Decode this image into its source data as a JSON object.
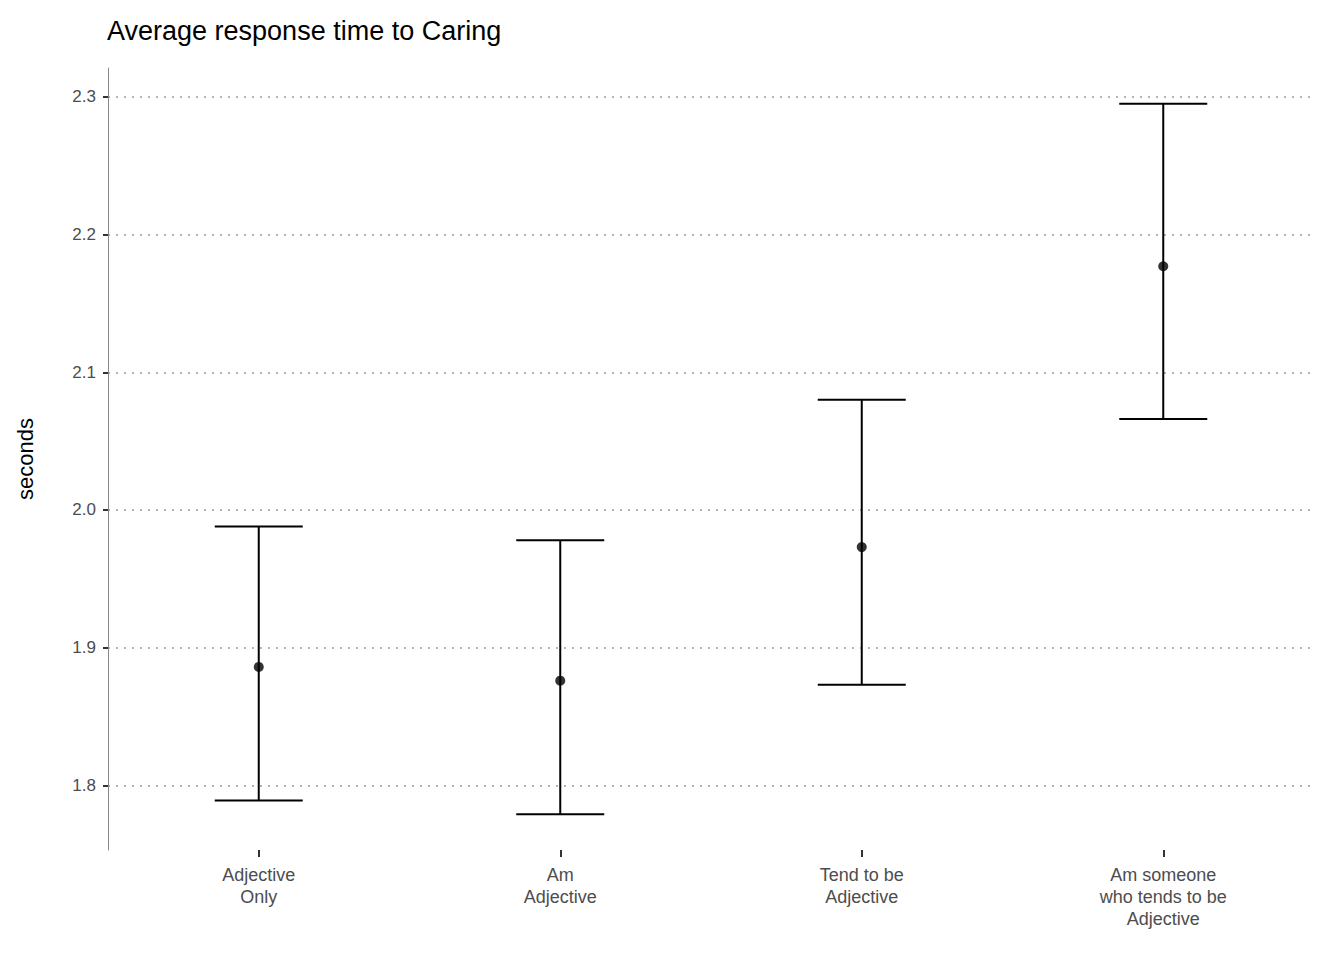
{
  "chart_data": {
    "type": "scatter",
    "title": "Average response time to Caring",
    "y_label": "seconds",
    "categories": [
      "Adjective\nOnly",
      "Am\nAdjective",
      "Tend to be\nAdjective",
      "Am someone\nwho tends to be\nAdjective"
    ],
    "values": [
      1.886,
      1.876,
      1.973,
      2.177
    ],
    "lower": [
      1.789,
      1.779,
      1.873,
      2.066
    ],
    "upper": [
      1.988,
      1.978,
      2.08,
      2.295
    ],
    "color": "#000000",
    "ylim": [
      1.753,
      2.321
    ],
    "yticks": [
      1.8,
      1.9,
      {
        "value": 2,
        "label": "2.0"
      },
      2.1,
      2.2,
      2.3
    ],
    "grid": true
  }
}
